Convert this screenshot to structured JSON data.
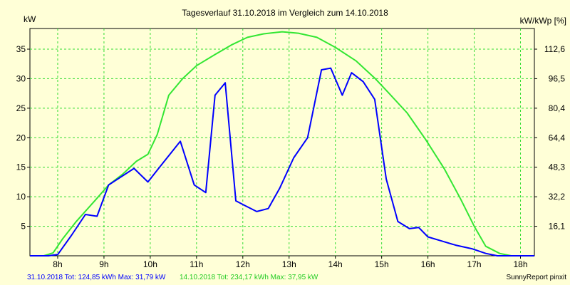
{
  "chart_data": {
    "type": "line",
    "title": "Tagesverlauf 31.10.2018 im Vergleich zum 14.10.2018",
    "ylabel_left": "kW",
    "ylabel_right": "kW/kWp [%]",
    "x_ticks": [
      "8h",
      "9h",
      "10h",
      "11h",
      "12h",
      "13h",
      "14h",
      "15h",
      "16h",
      "17h",
      "18h"
    ],
    "x_range": [
      7.4,
      18.3
    ],
    "y_left_ticks": [
      5,
      10,
      15,
      20,
      25,
      30,
      35
    ],
    "y_right_ticks": [
      "16,1",
      "32,2",
      "48,3",
      "64,4",
      "80,4",
      "96,5",
      "112,6"
    ],
    "ylim": [
      0,
      38.5
    ],
    "grid": true,
    "series": [
      {
        "name": "31.10.2018",
        "color": "#0000ff",
        "points": [
          [
            7.4,
            0
          ],
          [
            7.8,
            0
          ],
          [
            8.0,
            0.2
          ],
          [
            8.3,
            3.5
          ],
          [
            8.6,
            7.0
          ],
          [
            8.85,
            6.7
          ],
          [
            9.1,
            12.0
          ],
          [
            9.65,
            14.8
          ],
          [
            9.95,
            12.5
          ],
          [
            10.2,
            15.0
          ],
          [
            10.65,
            19.4
          ],
          [
            10.95,
            12.0
          ],
          [
            11.2,
            10.7
          ],
          [
            11.4,
            27.2
          ],
          [
            11.62,
            29.3
          ],
          [
            11.85,
            9.3
          ],
          [
            12.05,
            8.5
          ],
          [
            12.3,
            7.5
          ],
          [
            12.55,
            8.0
          ],
          [
            12.8,
            11.5
          ],
          [
            13.1,
            16.6
          ],
          [
            13.4,
            20.0
          ],
          [
            13.7,
            31.5
          ],
          [
            13.9,
            31.79
          ],
          [
            14.15,
            27.2
          ],
          [
            14.35,
            31.0
          ],
          [
            14.6,
            29.5
          ],
          [
            14.85,
            26.5
          ],
          [
            15.1,
            13.0
          ],
          [
            15.35,
            5.8
          ],
          [
            15.6,
            4.6
          ],
          [
            15.8,
            4.8
          ],
          [
            16.0,
            3.2
          ],
          [
            16.3,
            2.5
          ],
          [
            16.6,
            1.8
          ],
          [
            16.95,
            1.2
          ],
          [
            17.25,
            0.4
          ],
          [
            17.5,
            0
          ],
          [
            18.3,
            0
          ]
        ]
      },
      {
        "name": "14.10.2018",
        "color": "#33e633",
        "points": [
          [
            7.4,
            0
          ],
          [
            7.7,
            0
          ],
          [
            7.9,
            0.5
          ],
          [
            8.1,
            2.8
          ],
          [
            8.4,
            5.8
          ],
          [
            8.8,
            9.3
          ],
          [
            9.1,
            12.0
          ],
          [
            9.4,
            13.8
          ],
          [
            9.7,
            16.0
          ],
          [
            9.95,
            17.2
          ],
          [
            10.15,
            20.5
          ],
          [
            10.4,
            27.2
          ],
          [
            10.7,
            30.0
          ],
          [
            11.0,
            32.2
          ],
          [
            11.4,
            34.1
          ],
          [
            11.75,
            35.7
          ],
          [
            12.1,
            37.0
          ],
          [
            12.45,
            37.6
          ],
          [
            12.85,
            37.95
          ],
          [
            13.2,
            37.7
          ],
          [
            13.6,
            37.0
          ],
          [
            14.0,
            35.3
          ],
          [
            14.45,
            33.0
          ],
          [
            14.85,
            30.1
          ],
          [
            15.15,
            27.6
          ],
          [
            15.55,
            24.2
          ],
          [
            15.95,
            19.7
          ],
          [
            16.35,
            14.8
          ],
          [
            16.7,
            9.7
          ],
          [
            17.0,
            5.0
          ],
          [
            17.25,
            1.6
          ],
          [
            17.55,
            0.4
          ],
          [
            17.8,
            0
          ],
          [
            18.3,
            0
          ]
        ]
      }
    ]
  },
  "footer": {
    "series1_text": "31.10.2018 Tot: 124,85 kWh Max: 31,79 kW",
    "series2_text": "14.10.2018 Tot: 234,17 kWh Max: 37,95 kW",
    "brand": "SunnyReport pinxit"
  }
}
